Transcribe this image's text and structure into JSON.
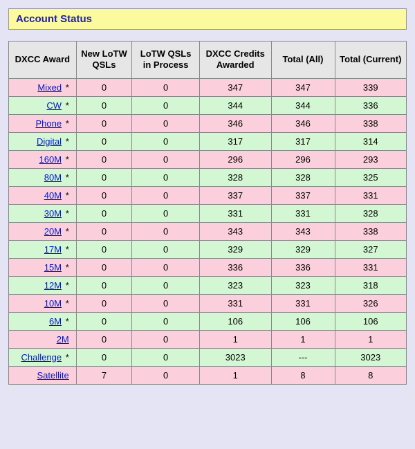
{
  "title": "Account Status",
  "colors": {
    "page_bg": "#e4e4f5",
    "titlebar_bg": "#fbfa9f",
    "titlebar_text": "#1c1cb8",
    "header_bg": "#e6e6e6",
    "border": "#888888",
    "row_pink": "#fccfdc",
    "row_green": "#d3f7d3",
    "link": "#0018c8"
  },
  "columns": [
    "DXCC Award",
    "New LoTW QSLs",
    "LoTW QSLs in Process",
    "DXCC Credits Awarded",
    "Total (All)",
    "Total (Current)"
  ],
  "star": "*",
  "rows": [
    {
      "award": "Mixed",
      "star": true,
      "color": "pink",
      "new_qsls": "0",
      "in_process": "0",
      "credits": "347",
      "total_all": "347",
      "total_current": "339"
    },
    {
      "award": "CW",
      "star": true,
      "color": "green",
      "new_qsls": "0",
      "in_process": "0",
      "credits": "344",
      "total_all": "344",
      "total_current": "336"
    },
    {
      "award": "Phone",
      "star": true,
      "color": "pink",
      "new_qsls": "0",
      "in_process": "0",
      "credits": "346",
      "total_all": "346",
      "total_current": "338"
    },
    {
      "award": "Digital",
      "star": true,
      "color": "green",
      "new_qsls": "0",
      "in_process": "0",
      "credits": "317",
      "total_all": "317",
      "total_current": "314"
    },
    {
      "award": "160M",
      "star": true,
      "color": "pink",
      "new_qsls": "0",
      "in_process": "0",
      "credits": "296",
      "total_all": "296",
      "total_current": "293"
    },
    {
      "award": "80M",
      "star": true,
      "color": "green",
      "new_qsls": "0",
      "in_process": "0",
      "credits": "328",
      "total_all": "328",
      "total_current": "325"
    },
    {
      "award": "40M",
      "star": true,
      "color": "pink",
      "new_qsls": "0",
      "in_process": "0",
      "credits": "337",
      "total_all": "337",
      "total_current": "331"
    },
    {
      "award": "30M",
      "star": true,
      "color": "green",
      "new_qsls": "0",
      "in_process": "0",
      "credits": "331",
      "total_all": "331",
      "total_current": "328"
    },
    {
      "award": "20M",
      "star": true,
      "color": "pink",
      "new_qsls": "0",
      "in_process": "0",
      "credits": "343",
      "total_all": "343",
      "total_current": "338"
    },
    {
      "award": "17M",
      "star": true,
      "color": "green",
      "new_qsls": "0",
      "in_process": "0",
      "credits": "329",
      "total_all": "329",
      "total_current": "327"
    },
    {
      "award": "15M",
      "star": true,
      "color": "pink",
      "new_qsls": "0",
      "in_process": "0",
      "credits": "336",
      "total_all": "336",
      "total_current": "331"
    },
    {
      "award": "12M",
      "star": true,
      "color": "green",
      "new_qsls": "0",
      "in_process": "0",
      "credits": "323",
      "total_all": "323",
      "total_current": "318"
    },
    {
      "award": "10M",
      "star": true,
      "color": "pink",
      "new_qsls": "0",
      "in_process": "0",
      "credits": "331",
      "total_all": "331",
      "total_current": "326"
    },
    {
      "award": "6M",
      "star": true,
      "color": "green",
      "new_qsls": "0",
      "in_process": "0",
      "credits": "106",
      "total_all": "106",
      "total_current": "106"
    },
    {
      "award": "2M",
      "star": false,
      "color": "pink",
      "new_qsls": "0",
      "in_process": "0",
      "credits": "1",
      "total_all": "1",
      "total_current": "1"
    },
    {
      "award": "Challenge",
      "star": true,
      "color": "green",
      "new_qsls": "0",
      "in_process": "0",
      "credits": "3023",
      "total_all": "---",
      "total_current": "3023"
    },
    {
      "award": "Satellite",
      "star": false,
      "color": "pink",
      "new_qsls": "7",
      "in_process": "0",
      "credits": "1",
      "total_all": "8",
      "total_current": "8"
    }
  ]
}
